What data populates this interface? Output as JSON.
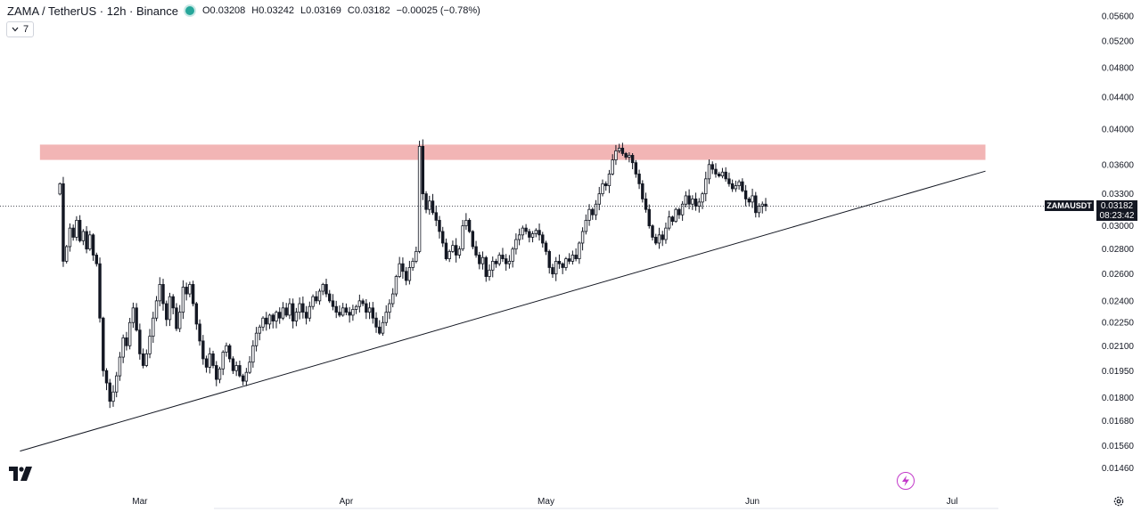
{
  "header": {
    "symbol_title": "ZAMA / TetherUS · 12h · Binance",
    "ohlc": {
      "open_label": "O",
      "open": "0.03208",
      "high_label": "H",
      "high": "0.03242",
      "low_label": "L",
      "low": "0.03169",
      "close_label": "C",
      "close": "0.03182",
      "change": "−0.00025 (−0.78%)"
    },
    "indicator_count": "7"
  },
  "price_scale": {
    "current_price": "0.03182",
    "countdown": "08:23:42",
    "symbol_tag": "ZAMAUSDT"
  },
  "colors": {
    "up": "#ffffff",
    "down": "#131722",
    "outline": "#131722",
    "resistance_zone": "#f0a8a8",
    "trendline": "#131722",
    "live_dot": "#26a69a",
    "flash_icon": "#c238c9"
  },
  "chart_data": {
    "type": "candlestick",
    "title": "ZAMA / TetherUS · 12h · Binance",
    "y_axis": {
      "scale": "log",
      "ticks": [
        "0.05600",
        "0.05200",
        "0.04800",
        "0.04400",
        "0.04000",
        "0.03600",
        "0.03300",
        "0.03000",
        "0.02800",
        "0.02600",
        "0.02400",
        "0.02250",
        "0.02100",
        "0.01950",
        "0.01800",
        "0.01680",
        "0.01560",
        "0.01460"
      ],
      "range": [
        0.0142,
        0.0575
      ]
    },
    "x_axis": {
      "ticks": [
        "Mar",
        "Apr",
        "May",
        "Jun",
        "Jul"
      ],
      "tick_dates": [
        "2026-03-01",
        "2026-04-01",
        "2026-05-01",
        "2026-06-01",
        "2026-07-01"
      ],
      "range": [
        "2026-02-08",
        "2026-07-22"
      ]
    },
    "grid": false,
    "series": {
      "interval_hours": 12,
      "start_date": "2026-02-17",
      "closes": [
        0.034,
        0.027,
        0.0282,
        0.0298,
        0.029,
        0.0305,
        0.0287,
        0.0295,
        0.028,
        0.0292,
        0.0275,
        0.0268,
        0.0228,
        0.0195,
        0.0188,
        0.0178,
        0.0183,
        0.0192,
        0.0203,
        0.0215,
        0.021,
        0.0225,
        0.0235,
        0.022,
        0.0205,
        0.0198,
        0.0205,
        0.0216,
        0.0228,
        0.024,
        0.0252,
        0.0238,
        0.0227,
        0.0243,
        0.0235,
        0.0221,
        0.0232,
        0.025,
        0.0245,
        0.0252,
        0.0238,
        0.0224,
        0.0213,
        0.0202,
        0.0197,
        0.0205,
        0.0198,
        0.019,
        0.0196,
        0.0206,
        0.021,
        0.0202,
        0.0195,
        0.0198,
        0.0192,
        0.0189,
        0.0194,
        0.02,
        0.021,
        0.0218,
        0.0222,
        0.0228,
        0.0224,
        0.023,
        0.0226,
        0.0232,
        0.0228,
        0.0235,
        0.023,
        0.0238,
        0.0226,
        0.0232,
        0.0238,
        0.0232,
        0.0228,
        0.0236,
        0.0243,
        0.024,
        0.0247,
        0.0252,
        0.0245,
        0.024,
        0.0236,
        0.0232,
        0.023,
        0.0235,
        0.0232,
        0.023,
        0.0234,
        0.0236,
        0.024,
        0.0238,
        0.0232,
        0.0235,
        0.0228,
        0.0222,
        0.0218,
        0.0225,
        0.0232,
        0.0238,
        0.0245,
        0.0258,
        0.0268,
        0.0262,
        0.0255,
        0.0265,
        0.027,
        0.0278,
        0.038,
        0.033,
        0.0315,
        0.0323,
        0.0312,
        0.0305,
        0.0295,
        0.0285,
        0.0272,
        0.0278,
        0.0283,
        0.0275,
        0.028,
        0.03,
        0.0305,
        0.0295,
        0.0282,
        0.0275,
        0.0268,
        0.0273,
        0.0258,
        0.0263,
        0.027,
        0.0268,
        0.0275,
        0.0272,
        0.0268,
        0.027,
        0.028,
        0.0288,
        0.0292,
        0.0298,
        0.0295,
        0.029,
        0.0293,
        0.0296,
        0.0292,
        0.0285,
        0.0278,
        0.0265,
        0.026,
        0.027,
        0.0268,
        0.0265,
        0.0272,
        0.027,
        0.0275,
        0.0272,
        0.0285,
        0.0295,
        0.0305,
        0.0315,
        0.031,
        0.032,
        0.033,
        0.034,
        0.0338,
        0.035,
        0.0365,
        0.0375,
        0.0378,
        0.0372,
        0.0368,
        0.037,
        0.0362,
        0.035,
        0.034,
        0.0325,
        0.0315,
        0.03,
        0.029,
        0.0285,
        0.0292,
        0.0288,
        0.0298,
        0.0308,
        0.0304,
        0.0315,
        0.031,
        0.032,
        0.0328,
        0.032,
        0.0325,
        0.0318,
        0.0322,
        0.033,
        0.0345,
        0.036,
        0.0355,
        0.035,
        0.0348,
        0.0352,
        0.0345,
        0.034,
        0.0335,
        0.0338,
        0.0342,
        0.0333,
        0.0325,
        0.0322,
        0.0328,
        0.0312,
        0.0318,
        0.032,
        0.0318
      ]
    },
    "annotations": [
      {
        "type": "horizontal-zone",
        "label": "",
        "y_low": 0.0365,
        "y_high": 0.0382,
        "x_start": "2026-02-14",
        "x_end": "2026-07-06"
      },
      {
        "type": "trendline",
        "label": "",
        "points": [
          {
            "date": "2026-02-11",
            "price": 0.01535
          },
          {
            "date": "2026-07-06",
            "price": 0.0353
          }
        ]
      },
      {
        "type": "price-line",
        "label": "",
        "price": 0.03182
      }
    ]
  }
}
